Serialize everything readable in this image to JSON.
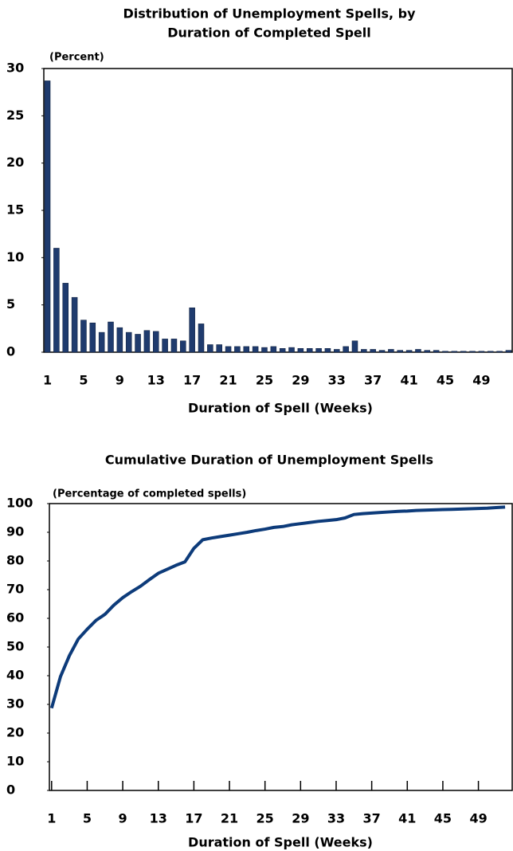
{
  "chart_data": [
    {
      "type": "bar",
      "title": [
        "Distribution of Unemployment Spells, by",
        "Duration of Completed Spell"
      ],
      "unit_label": "(Percent)",
      "xlabel": "Duration of Spell (Weeks)",
      "x": [
        1,
        2,
        3,
        4,
        5,
        6,
        7,
        8,
        9,
        10,
        11,
        12,
        13,
        14,
        15,
        16,
        17,
        18,
        19,
        20,
        21,
        22,
        23,
        24,
        25,
        26,
        27,
        28,
        29,
        30,
        31,
        32,
        33,
        34,
        35,
        36,
        37,
        38,
        39,
        40,
        41,
        42,
        43,
        44,
        45,
        46,
        47,
        48,
        49,
        50,
        51,
        52
      ],
      "values": [
        28.7,
        11.0,
        7.3,
        5.8,
        3.4,
        3.1,
        2.1,
        3.2,
        2.6,
        2.1,
        1.9,
        2.3,
        2.2,
        1.4,
        1.4,
        1.2,
        4.7,
        3.0,
        0.8,
        0.8,
        0.6,
        0.6,
        0.6,
        0.6,
        0.5,
        0.6,
        0.4,
        0.5,
        0.4,
        0.4,
        0.4,
        0.4,
        0.3,
        0.6,
        1.2,
        0.3,
        0.3,
        0.2,
        0.3,
        0.2,
        0.2,
        0.3,
        0.2,
        0.2,
        0.1,
        0.1,
        0.1,
        0.1,
        0.1,
        0.1,
        0.1,
        0.2
      ],
      "color": "#1f3b6e",
      "xlim": [
        0.6,
        52.4
      ],
      "xticks": [
        1,
        5,
        9,
        13,
        17,
        21,
        25,
        29,
        33,
        37,
        41,
        45,
        49
      ],
      "ylim": [
        0,
        30
      ],
      "yticks": [
        0,
        5,
        10,
        15,
        20,
        25,
        30
      ]
    },
    {
      "type": "line",
      "title": [
        "Cumulative Duration of Unemployment Spells"
      ],
      "unit_label": "(Percentage of completed spells)",
      "xlabel": "Duration of Spell (Weeks)",
      "x": [
        1,
        2,
        3,
        4,
        5,
        6,
        7,
        8,
        9,
        10,
        11,
        12,
        13,
        14,
        15,
        16,
        17,
        18,
        19,
        20,
        21,
        22,
        23,
        24,
        25,
        26,
        27,
        28,
        29,
        30,
        31,
        32,
        33,
        34,
        35,
        36,
        37,
        38,
        39,
        40,
        41,
        42,
        43,
        44,
        45,
        46,
        47,
        48,
        49,
        50,
        51,
        52
      ],
      "values": [
        28.7,
        39.7,
        47,
        52.8,
        56.2,
        59.3,
        61.4,
        64.6,
        67.2,
        69.3,
        71.2,
        73.5,
        75.7,
        77.1,
        78.5,
        79.7,
        84.4,
        87.4,
        88,
        88.5,
        89,
        89.5,
        90,
        90.6,
        91.1,
        91.7,
        92,
        92.6,
        93,
        93.4,
        93.8,
        94.1,
        94.4,
        95,
        96.2,
        96.5,
        96.7,
        96.9,
        97.1,
        97.3,
        97.4,
        97.6,
        97.7,
        97.8,
        97.9,
        98,
        98.1,
        98.2,
        98.3,
        98.4,
        98.6,
        98.8
      ],
      "color": "#0d3b7a",
      "xlim": [
        0.75,
        52.8
      ],
      "xticks": [
        1,
        5,
        9,
        13,
        17,
        21,
        25,
        29,
        33,
        37,
        41,
        45,
        49
      ],
      "ylim": [
        0,
        100
      ],
      "yticks": [
        0,
        10,
        20,
        30,
        40,
        50,
        60,
        70,
        80,
        90,
        100
      ]
    }
  ]
}
